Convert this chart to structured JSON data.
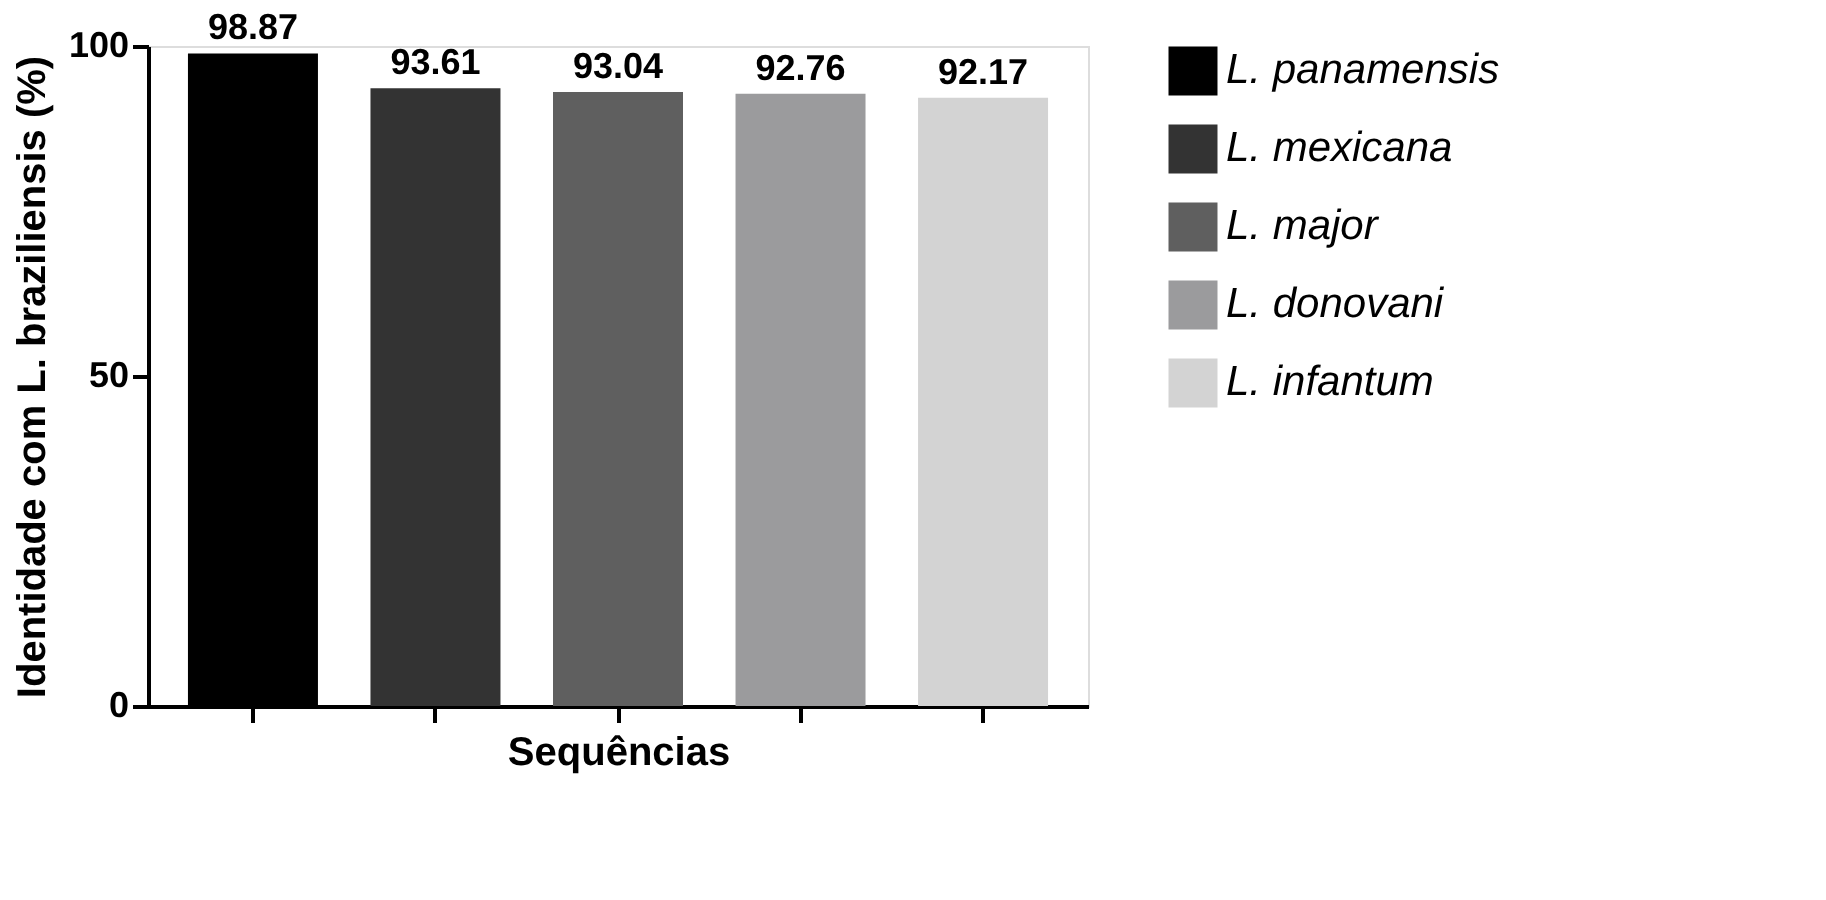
{
  "chart_data": {
    "type": "bar",
    "categories": [
      null,
      null,
      null,
      null,
      null
    ],
    "series": [
      {
        "name": "L. panamensis",
        "color": "#000000",
        "values": [
          98.87,
          null,
          null,
          null,
          null
        ]
      },
      {
        "name": "L. mexicana",
        "color": "#333333",
        "values": [
          null,
          93.61,
          null,
          null,
          null
        ]
      },
      {
        "name": "L. major",
        "color": "#5f5f5f",
        "values": [
          null,
          null,
          93.04,
          null,
          null
        ]
      },
      {
        "name": "L. donovani",
        "color": "#9b9b9d",
        "values": [
          null,
          null,
          null,
          92.76,
          null
        ]
      },
      {
        "name": "L. infantum",
        "color": "#d3d3d3",
        "values": [
          null,
          null,
          null,
          null,
          92.17
        ]
      }
    ],
    "xlabel": "Sequências",
    "ylabel": "Identidade com L. braziliensis (%)",
    "ylim": [
      0,
      100
    ],
    "yticks": [
      0,
      50,
      100
    ],
    "data_labels": true,
    "grid": false,
    "legend": "right",
    "tick_labels": "y"
  }
}
